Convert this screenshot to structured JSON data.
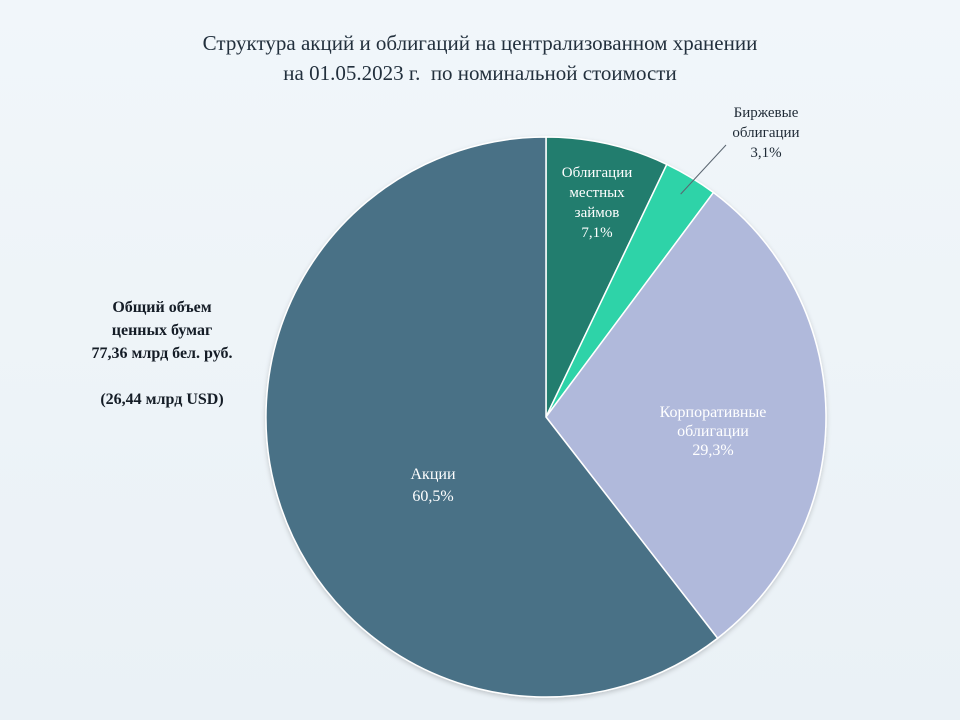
{
  "title": {
    "line1": "Структура акций и облигаций на централизованном хранении",
    "line2": "на 01.05.2023 г.  по номинальной стоимости"
  },
  "total_info": {
    "line1": "Общий объем",
    "line2": "ценных бумаг",
    "line3": "77,36  млрд бел. руб.",
    "line4": "(26,44  млрд USD)"
  },
  "colors": {
    "background": "#edf3f8",
    "akcii": "#4a7186",
    "local_bonds": "#247d6e",
    "exchange_bonds": "#2ed3a8",
    "corporate_bonds": "#b0b9db"
  },
  "chart_data": {
    "type": "pie",
    "start_angle_deg": 0,
    "direction": "clockwise",
    "slices": [
      {
        "key": "local",
        "label_lines": [
          "Облигации",
          "местных",
          "займов",
          "7,1%"
        ],
        "value": 7.1,
        "color": "#247d6e",
        "label_color": "#ffffff",
        "label_inside": true
      },
      {
        "key": "exchange",
        "label_lines": [
          "Биржевые",
          "облигации",
          "3,1%"
        ],
        "value": 3.1,
        "color": "#2ed3a8",
        "label_color": "#1f2a36",
        "label_inside": false
      },
      {
        "key": "corporate",
        "label_lines": [
          "Корпоративные",
          "облигации",
          "29,3%"
        ],
        "value": 29.3,
        "color": "#b0b9db",
        "label_color": "#ffffff",
        "label_inside": true
      },
      {
        "key": "akcii",
        "label_lines": [
          "Акции",
          "60,5%"
        ],
        "value": 60.5,
        "color": "#4a7186",
        "label_color": "#ffffff",
        "label_inside": true
      }
    ]
  }
}
